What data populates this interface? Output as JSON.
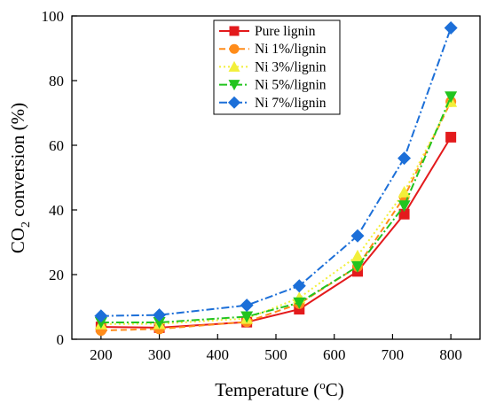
{
  "chart_data": {
    "type": "line",
    "xlabel": "Temperature (oC)",
    "xlabel_parts": {
      "main": "Temperature (",
      "sup": "o",
      "rest": "C)"
    },
    "ylabel": "CO2 conversion (%)",
    "ylabel_parts": {
      "main": "CO",
      "sub": "2",
      "rest": " conversion (%)"
    },
    "xlim": [
      150,
      850
    ],
    "ylim": [
      0,
      100
    ],
    "xticks": [
      200,
      300,
      400,
      500,
      600,
      700,
      800
    ],
    "yticks": [
      0,
      20,
      40,
      60,
      80,
      100
    ],
    "grid": false,
    "legend_placement": "top-center",
    "x": [
      200,
      300,
      450,
      540,
      640,
      720,
      800
    ],
    "series": [
      {
        "name": "Pure lignin",
        "color": "#e31a1c",
        "marker": "square",
        "dash": "solid",
        "values": [
          3.8,
          3.6,
          5.3,
          9.3,
          21.0,
          38.7,
          62.5
        ]
      },
      {
        "name": "Ni 1%/lignin",
        "color": "#ff8c1a",
        "marker": "circle",
        "dash": "dash",
        "values": [
          2.7,
          3.2,
          5.4,
          11.0,
          22.5,
          44.0,
          73.5
        ]
      },
      {
        "name": "Ni 3%/lignin",
        "color": "#f2ef3a",
        "marker": "triangle-up",
        "dash": "dot",
        "values": [
          4.7,
          4.8,
          6.4,
          12.8,
          25.8,
          45.5,
          73.5
        ]
      },
      {
        "name": "Ni 5%/lignin",
        "color": "#22c41f",
        "marker": "triangle-down",
        "dash": "dashdot",
        "values": [
          5.2,
          5.2,
          7.0,
          11.3,
          22.5,
          41.3,
          75.0
        ]
      },
      {
        "name": "Ni 7%/lignin",
        "color": "#1c6fd8",
        "marker": "diamond",
        "dash": "dashdot",
        "values": [
          7.2,
          7.5,
          10.5,
          16.5,
          32.0,
          56.0,
          96.3
        ]
      }
    ]
  }
}
